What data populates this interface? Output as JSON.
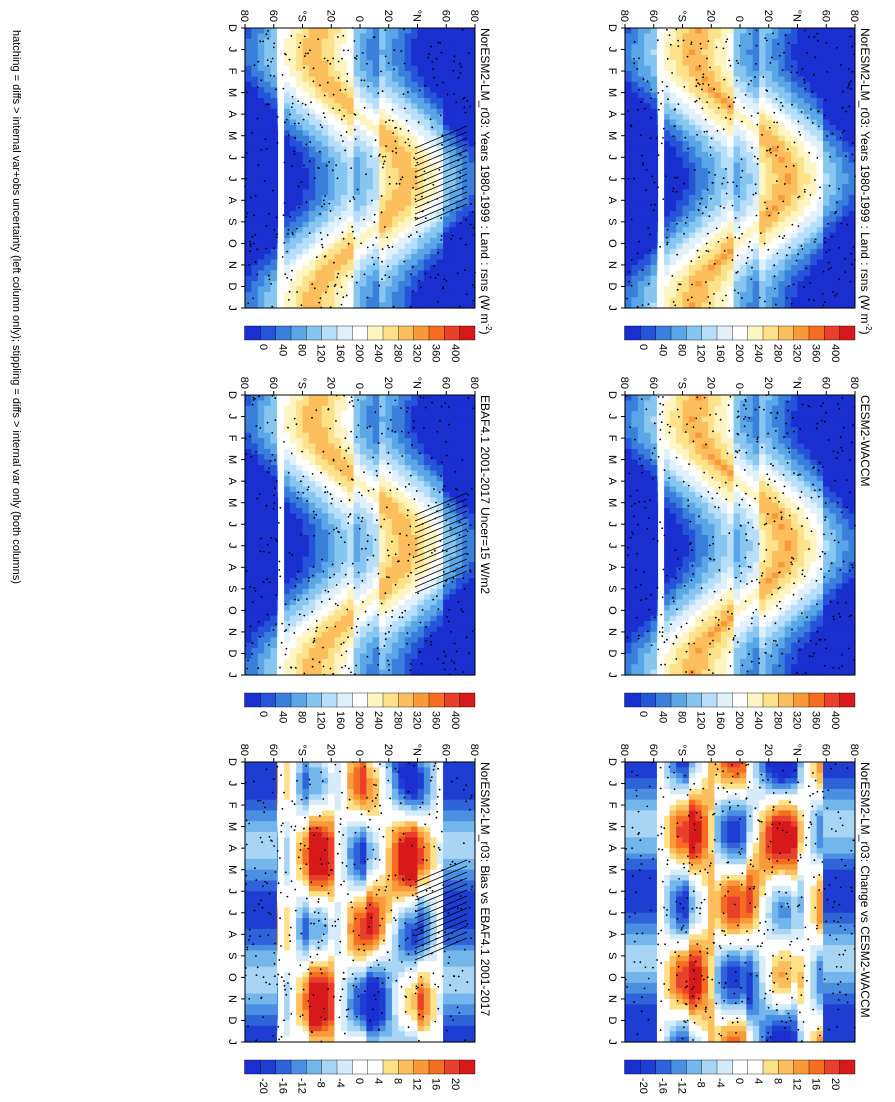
{
  "figure": {
    "footnote": "hatching = diffs > internal var+obs uncertainty (left column only); stippling = diffs > internal var only (both columns)"
  },
  "chart_data": [
    {
      "type": "heatmap",
      "id": "p1",
      "title": "NorESM2-LM_r03: Years 1980-1999 : Land : rsns (W m",
      "title_sup": "-2",
      "title_tail": ")",
      "x_categories": [
        "D",
        "J",
        "F",
        "M",
        "A",
        "M",
        "J",
        "J",
        "A",
        "S",
        "O",
        "N",
        "D",
        "J"
      ],
      "y_ticks": [
        "80",
        "60",
        "°N",
        "20",
        "0",
        "20",
        "°S",
        "60",
        "80"
      ],
      "colorbar": [
        "400",
        "360",
        "320",
        "280",
        "240",
        "200",
        "160",
        "120",
        "80",
        "40",
        "0"
      ],
      "scale": "absolute",
      "hatching": true,
      "stippling": true
    },
    {
      "type": "heatmap",
      "id": "p2",
      "title": "NorESM2-LM_r03: Years 1980-1999 : Land : rsns (W m",
      "title_sup": "-2",
      "title_tail": ")",
      "x_categories": [
        "D",
        "J",
        "F",
        "M",
        "A",
        "M",
        "J",
        "J",
        "A",
        "S",
        "O",
        "N",
        "D",
        "J"
      ],
      "y_ticks": [
        "80",
        "60",
        "°N",
        "20",
        "0",
        "20",
        "°S",
        "60",
        "80"
      ],
      "colorbar": [
        "400",
        "360",
        "320",
        "280",
        "240",
        "200",
        "160",
        "120",
        "80",
        "40",
        "0"
      ],
      "scale": "absolute",
      "hatching": false,
      "stippling": true
    },
    {
      "type": "heatmap",
      "id": "p3",
      "title": "EBAF4.1 2001-2017 Uncer=15 W/m2",
      "x_categories": [
        "D",
        "J",
        "F",
        "M",
        "A",
        "M",
        "J",
        "J",
        "A",
        "S",
        "O",
        "N",
        "D",
        "J"
      ],
      "y_ticks": [
        "80",
        "60",
        "°N",
        "20",
        "0",
        "20",
        "°S",
        "60",
        "80"
      ],
      "colorbar": [
        "400",
        "360",
        "320",
        "280",
        "240",
        "200",
        "160",
        "120",
        "80",
        "40",
        "0"
      ],
      "scale": "absolute",
      "hatching": true,
      "stippling": true
    },
    {
      "type": "heatmap",
      "id": "p4",
      "title": "CESM2-WACCM",
      "x_categories": [
        "D",
        "J",
        "F",
        "M",
        "A",
        "M",
        "J",
        "J",
        "A",
        "S",
        "O",
        "N",
        "D",
        "J"
      ],
      "y_ticks": [
        "80",
        "60",
        "°N",
        "20",
        "0",
        "20",
        "°S",
        "60",
        "80"
      ],
      "colorbar": [
        "400",
        "360",
        "320",
        "280",
        "240",
        "200",
        "160",
        "120",
        "80",
        "40",
        "0"
      ],
      "scale": "absolute",
      "hatching": false,
      "stippling": true
    },
    {
      "type": "heatmap",
      "id": "p5",
      "title": "NorESM2-LM_r03: Bias vs EBAF4.1 2001-2017",
      "x_categories": [
        "D",
        "J",
        "F",
        "M",
        "A",
        "M",
        "J",
        "J",
        "A",
        "S",
        "O",
        "N",
        "D",
        "J"
      ],
      "y_ticks": [
        "80",
        "60",
        "°N",
        "20",
        "0",
        "20",
        "°S",
        "60",
        "80"
      ],
      "colorbar": [
        "20",
        "16",
        "12",
        "8",
        "4",
        "0",
        "-4",
        "-8",
        "-12",
        "-16",
        "-20"
      ],
      "scale": "diff",
      "hatching": true,
      "stippling": true
    },
    {
      "type": "heatmap",
      "id": "p6",
      "title": "NorESM2-LM_r03: Change vs CESM2-WACCM",
      "x_categories": [
        "D",
        "J",
        "F",
        "M",
        "A",
        "M",
        "J",
        "J",
        "A",
        "S",
        "O",
        "N",
        "D",
        "J"
      ],
      "y_ticks": [
        "80",
        "60",
        "°N",
        "20",
        "0",
        "20",
        "°S",
        "60",
        "80"
      ],
      "colorbar": [
        "20",
        "16",
        "12",
        "8",
        "4",
        "0",
        "-4",
        "-8",
        "-12",
        "-16",
        "-20"
      ],
      "scale": "diff",
      "hatching": false,
      "stippling": true
    }
  ]
}
